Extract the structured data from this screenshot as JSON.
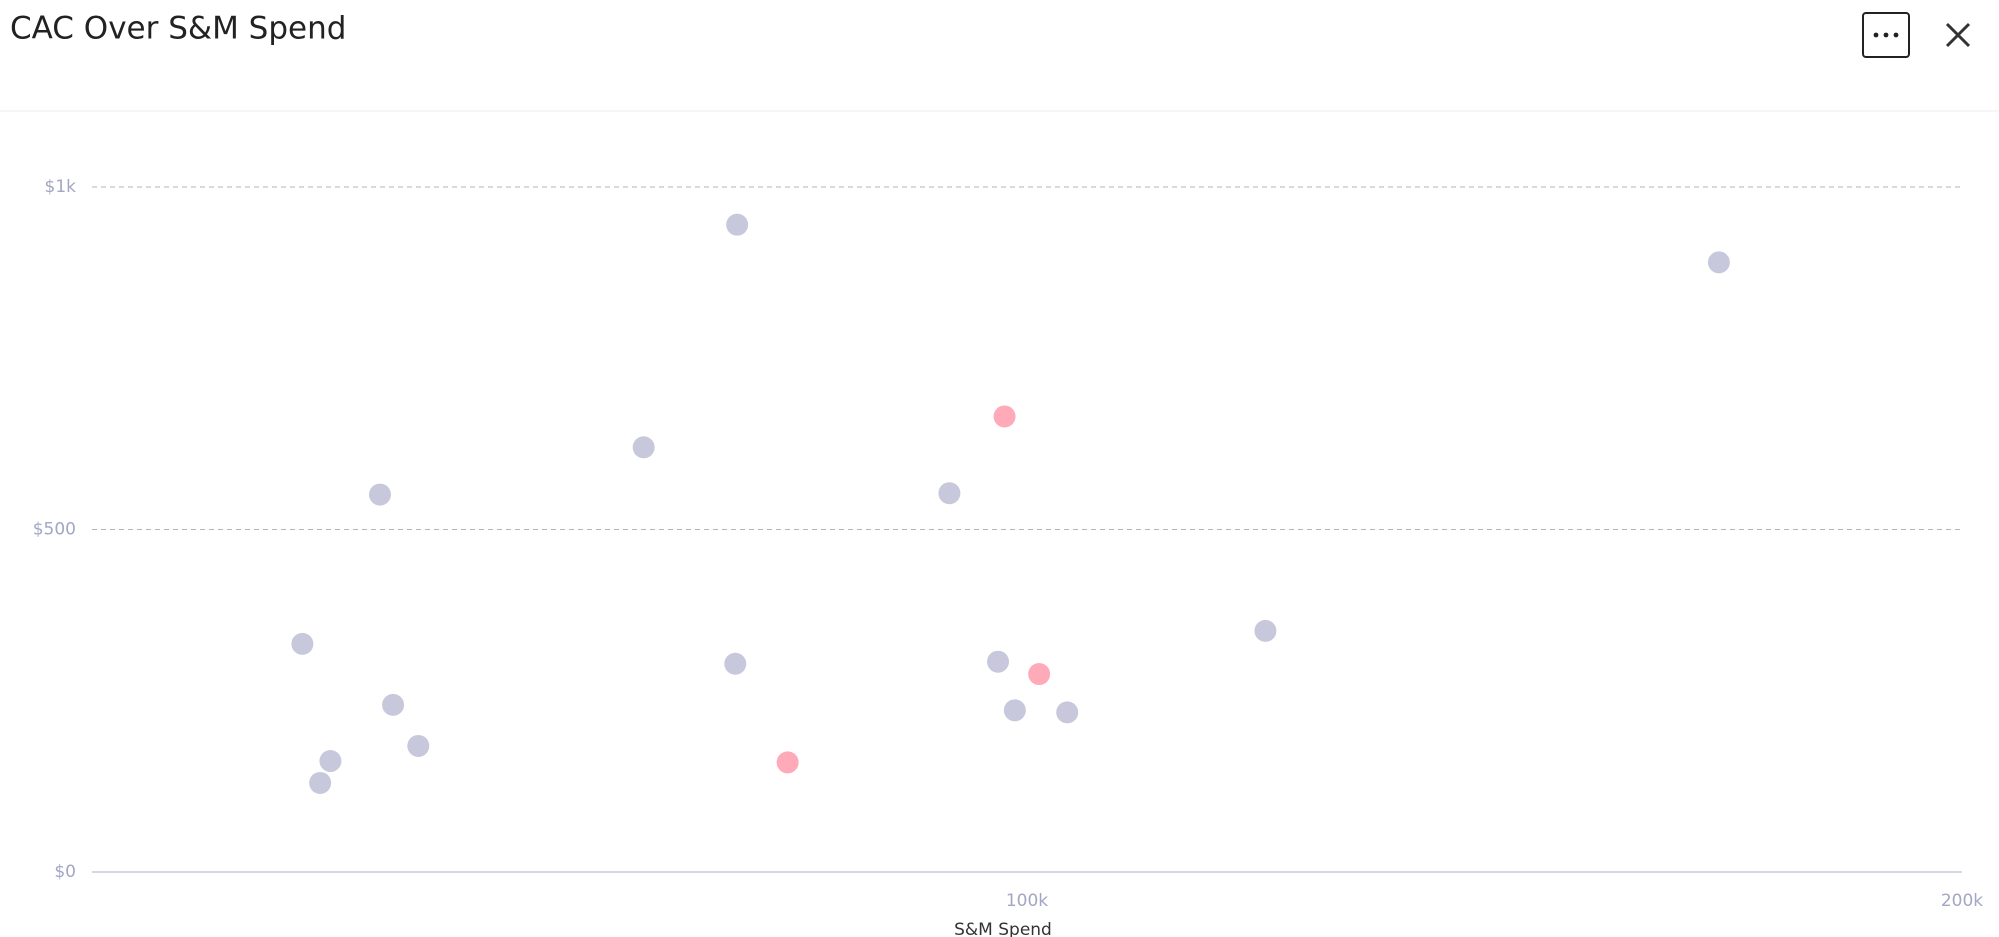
{
  "chart_data": {
    "type": "scatter",
    "title": "CAC Over S&M Spend",
    "x_label": "S&M Spend",
    "xlim": [
      0,
      200000
    ],
    "xticks": [
      {
        "value": 100000,
        "label": "100k"
      },
      {
        "value": 200000,
        "label": "200k"
      }
    ],
    "ylim": [
      0,
      1000
    ],
    "yticks": [
      {
        "value": 0,
        "label": "$0"
      },
      {
        "value": 500,
        "label": "$500"
      },
      {
        "value": 1000,
        "label": "$1k"
      }
    ],
    "grid": true,
    "series": [
      {
        "color": "#c8c8dc",
        "x": [
          69000,
          174000,
          59000,
          30800,
          91700,
          125500,
          22500,
          68800,
          96900,
          32200,
          98700,
          104300,
          34900,
          25500,
          24400
        ],
        "values": [
          945,
          890,
          620,
          551,
          553,
          352,
          333,
          304,
          307,
          244,
          236,
          233,
          184,
          162,
          130
        ]
      },
      {
        "color": "#ffaab8",
        "x": [
          97600,
          101300,
          74400
        ],
        "values": [
          665,
          289,
          160
        ]
      }
    ]
  }
}
